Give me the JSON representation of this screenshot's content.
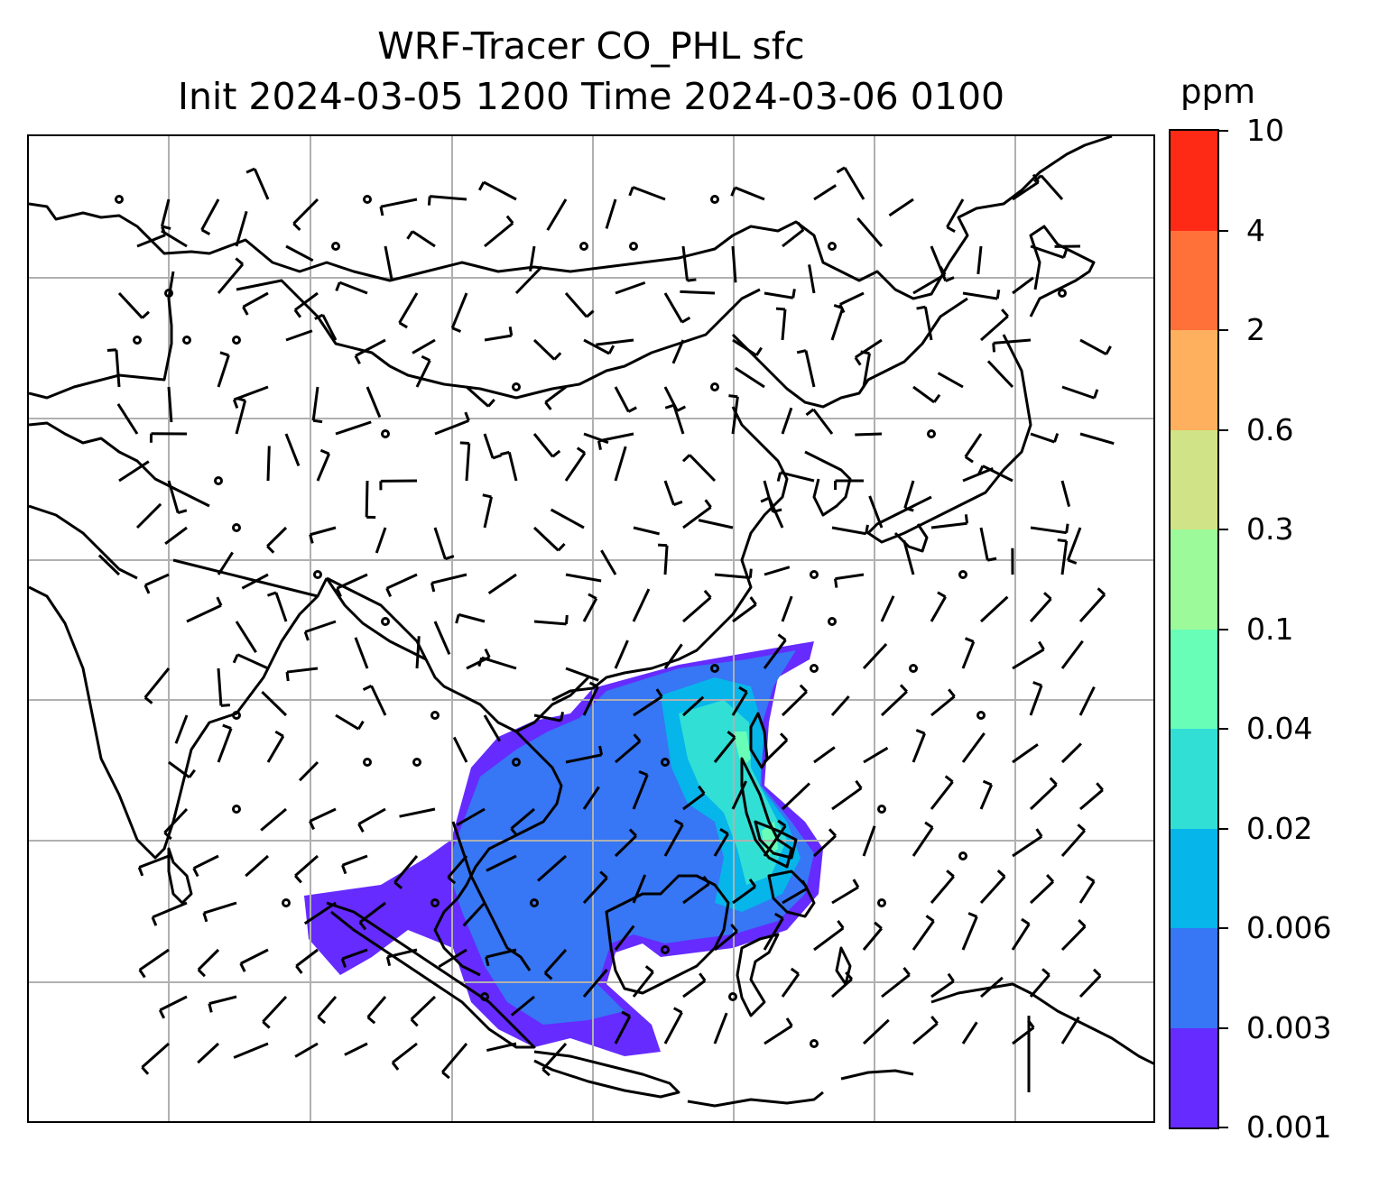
{
  "title": {
    "line1": "WRF-Tracer CO_PHL sfc",
    "line2": "Init 2024-03-05 1200 Time 2024-03-06 0100"
  },
  "colorbar": {
    "units": "ppm",
    "levels": [
      "0.001",
      "0.003",
      "0.006",
      "0.02",
      "0.04",
      "0.1",
      "0.3",
      "0.6",
      "2",
      "4",
      "10"
    ],
    "colors": [
      "#652bff",
      "#3776f4",
      "#06b5ea",
      "#32dfd5",
      "#68feb8",
      "#9cfa9a",
      "#d0e386",
      "#ffb05f",
      "#ff7139",
      "#ff2a16"
    ]
  },
  "map": {
    "gridlines": true,
    "region": "East and Southeast Asia",
    "field": "CO tracer from Philippines, surface",
    "overlay": "wind barbs",
    "land_outline_color": "#000000",
    "grid_color": "#b0b0b0"
  }
}
